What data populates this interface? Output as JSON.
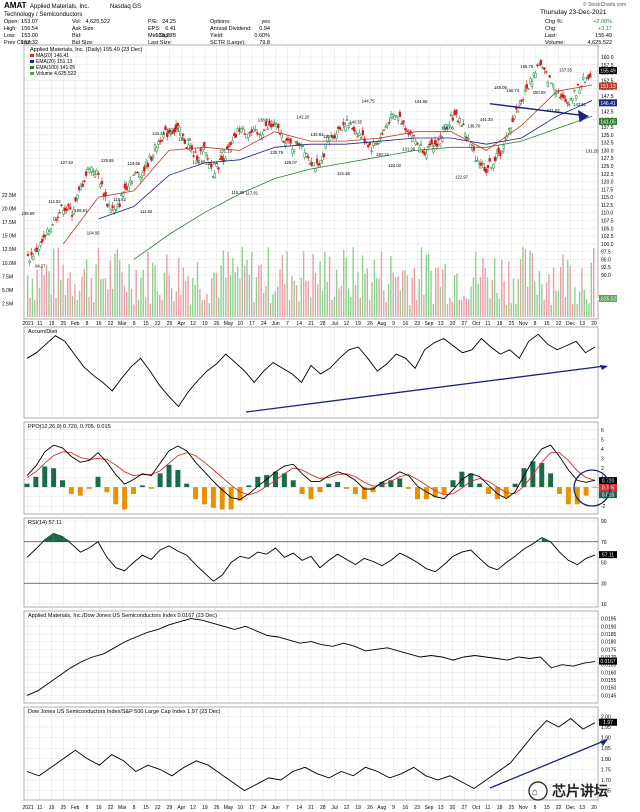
{
  "header": {
    "symbol": "AMAT",
    "company": "Applied Materials, Inc.",
    "exchange": "Nasdaq GS",
    "sector": "Technology / Semiconductors",
    "date": "Thursday 23-Dec-2021",
    "copyright": "© StockCharts.com",
    "col1": [
      [
        "Open:",
        "153.07"
      ],
      [
        "High:",
        "156.54"
      ],
      [
        "Low:",
        "153.00"
      ],
      [
        "Prev Close:",
        "152.32"
      ]
    ],
    "col2": [
      [
        "Vol:",
        "4,625,522"
      ],
      [
        "Ask Size:",
        ""
      ],
      [
        "Bid:",
        ""
      ],
      [
        "Bid Size:",
        ""
      ]
    ],
    "col3": [
      [
        "P/E:",
        "24.25"
      ],
      [
        "EPS:",
        "6.41"
      ],
      [
        "Mkt Cap:",
        "138.28B"
      ],
      [
        "Last Size:",
        ""
      ]
    ],
    "col4": [
      [
        "Options:",
        "yes"
      ],
      [
        "Annual Dividend:",
        "0.94"
      ],
      [
        "Yield:",
        "0.60%"
      ],
      [
        "SCTR (Large):",
        "79.8"
      ]
    ],
    "col5": [
      [
        "Chg %:",
        "+2.08%"
      ],
      [
        "Chg:",
        "+3.17"
      ],
      [
        "Last:",
        "155.49"
      ],
      [
        "Volume:",
        "4,625,522"
      ]
    ]
  },
  "colors": {
    "price_up": "#1e8c3a",
    "price_down": "#cc2222",
    "ma20": "#c0392b",
    "ma50": "#1a237e",
    "ma200": "#2e7d32",
    "volume_up": "#8fcf8f",
    "volume_down": "#e8a0a8",
    "ppo_line": "#000000",
    "ppo_signal": "#d32f2f",
    "hist_pos": "#1b6b4b",
    "hist_neg": "#e59400",
    "rsi_fill": "#1b6b4b",
    "arrow": "#1a237e",
    "panel_border": "#999999",
    "grid": "#d9d9d9"
  },
  "chart_data": [
    {
      "type": "line",
      "panel": "price",
      "title": "Applied Materials, Inc. (Daily) 155.49 (23 Dec)",
      "legend": [
        "MA(20) 146.41",
        "EMA(20) 151.13",
        "EMA(100) 141.05",
        "Volume 4,625,522"
      ],
      "right_ticks": [
        "160.0",
        "157.5",
        "155.0",
        "152.5",
        "150.0",
        "147.5",
        "145.0",
        "142.5",
        "140.0",
        "137.5",
        "135.0",
        "132.5",
        "130.0",
        "127.5",
        "125.0",
        "122.5",
        "120.0",
        "117.5",
        "115.0",
        "112.5",
        "110.0",
        "107.5",
        "105.0",
        "102.5",
        "100.0",
        "97.5",
        "95.0",
        "92.5",
        "90.0"
      ],
      "volume_ticks": [
        "22.5M",
        "20.0M",
        "17.5M",
        "15.0M",
        "12.5M",
        "10.0M",
        "7.5M",
        "5.0M",
        "2.5M"
      ],
      "right_value_labels": [
        "155.49",
        "151.13",
        "146.41",
        "141.05"
      ],
      "volume_value_label": "4,625,522",
      "x_labels": [
        "2021",
        "11",
        "19",
        "25",
        "Feb",
        "8",
        "16",
        "22",
        "Mar",
        "8",
        "15",
        "22",
        "29",
        "Apr",
        "12",
        "19",
        "26",
        "May",
        "10",
        "17",
        "24",
        "Jun",
        "7",
        "14",
        "21",
        "28",
        "Jul",
        "12",
        "19",
        "26",
        "Aug",
        "9",
        "16",
        "23",
        "Sep",
        "13",
        "20",
        "27",
        "Oct",
        "11",
        "18",
        "25",
        "Nov",
        "8",
        "15",
        "22",
        "Dec",
        "13",
        "20"
      ],
      "annotations": [
        "108.69",
        "94.27",
        "112.52",
        "127.62",
        "109.51",
        "104.95",
        "125.65",
        "115.62",
        "124.66",
        "111.82",
        "134.28",
        "137.95",
        "132.46",
        "127.65",
        "124.84",
        "131.19",
        "115.30",
        "117.81",
        "138.61",
        "130.79",
        "125.07",
        "142.20",
        "133.93",
        "135.89",
        "121.48",
        "140.55",
        "144.75",
        "130.12",
        "124.02",
        "131.96",
        "144.65",
        "133.25",
        "136.06",
        "122.97",
        "136.70",
        "141.33",
        "149.09",
        "150.74",
        "155.76",
        "150.08",
        "141.63",
        "157.35",
        "143.61",
        "131.20"
      ],
      "ylim": [
        90.0,
        160.0
      ],
      "close_points": [
        [
          0,
          95
        ],
        [
          5,
          98
        ],
        [
          10,
          102
        ],
        [
          15,
          108
        ],
        [
          20,
          112
        ],
        [
          25,
          110
        ],
        [
          30,
          118
        ],
        [
          35,
          125
        ],
        [
          40,
          122
        ],
        [
          45,
          113
        ],
        [
          50,
          110
        ],
        [
          55,
          118
        ],
        [
          60,
          122
        ],
        [
          65,
          123
        ],
        [
          70,
          128
        ],
        [
          75,
          134
        ],
        [
          80,
          136
        ],
        [
          85,
          137
        ],
        [
          90,
          132
        ],
        [
          95,
          128
        ],
        [
          100,
          130
        ],
        [
          105,
          123
        ],
        [
          110,
          127
        ],
        [
          115,
          131
        ],
        [
          120,
          137
        ],
        [
          125,
          136
        ],
        [
          130,
          135
        ],
        [
          135,
          137
        ],
        [
          140,
          138
        ],
        [
          145,
          134
        ],
        [
          150,
          131
        ],
        [
          155,
          133
        ],
        [
          160,
          127
        ],
        [
          165,
          124
        ],
        [
          170,
          133
        ],
        [
          175,
          136
        ],
        [
          180,
          139
        ],
        [
          185,
          137
        ],
        [
          190,
          134
        ],
        [
          195,
          131
        ],
        [
          200,
          134
        ],
        [
          205,
          140
        ],
        [
          210,
          141
        ],
        [
          215,
          137
        ],
        [
          220,
          133
        ],
        [
          225,
          130
        ],
        [
          230,
          131
        ],
        [
          235,
          135
        ],
        [
          240,
          141
        ],
        [
          245,
          140
        ],
        [
          250,
          133
        ],
        [
          255,
          127
        ],
        [
          260,
          124
        ],
        [
          265,
          127
        ],
        [
          270,
          131
        ],
        [
          275,
          140
        ],
        [
          280,
          146
        ],
        [
          285,
          152
        ],
        [
          290,
          158
        ],
        [
          295,
          153
        ],
        [
          300,
          150
        ],
        [
          305,
          145
        ],
        [
          310,
          148
        ],
        [
          315,
          152
        ],
        [
          320,
          155.5
        ]
      ],
      "ma20_points": [
        [
          20,
          100
        ],
        [
          40,
          115
        ],
        [
          60,
          117
        ],
        [
          80,
          130
        ],
        [
          100,
          131
        ],
        [
          120,
          130
        ],
        [
          140,
          136
        ],
        [
          160,
          133
        ],
        [
          180,
          133
        ],
        [
          200,
          134
        ],
        [
          220,
          136
        ],
        [
          240,
          136
        ],
        [
          260,
          130
        ],
        [
          280,
          138
        ],
        [
          300,
          149
        ],
        [
          320,
          151
        ]
      ],
      "ma50_points": [
        [
          40,
          108
        ],
        [
          60,
          112
        ],
        [
          80,
          122
        ],
        [
          100,
          126
        ],
        [
          120,
          127
        ],
        [
          140,
          131
        ],
        [
          160,
          132
        ],
        [
          180,
          132
        ],
        [
          200,
          133
        ],
        [
          220,
          134
        ],
        [
          240,
          134
        ],
        [
          260,
          132
        ],
        [
          280,
          134
        ],
        [
          300,
          141
        ],
        [
          320,
          146
        ]
      ],
      "ma200_points": [
        [
          60,
          95
        ],
        [
          80,
          103
        ],
        [
          100,
          110
        ],
        [
          120,
          116
        ],
        [
          140,
          121
        ],
        [
          160,
          124
        ],
        [
          180,
          126
        ],
        [
          200,
          128
        ],
        [
          220,
          130
        ],
        [
          240,
          131
        ],
        [
          260,
          131
        ],
        [
          280,
          133
        ],
        [
          300,
          137
        ],
        [
          320,
          141
        ]
      ]
    },
    {
      "type": "line",
      "panel": "accum",
      "title": "Accum/Distr",
      "values": [
        80,
        84,
        90,
        96,
        92,
        83,
        74,
        68,
        63,
        57,
        66,
        74,
        80,
        71,
        61,
        53,
        46,
        56,
        64,
        71,
        76,
        83,
        77,
        71,
        63,
        71,
        77,
        73,
        69,
        63,
        75,
        69,
        73,
        80,
        86,
        88,
        80,
        71,
        76,
        83,
        80,
        73,
        86,
        91,
        94,
        89,
        84,
        86,
        94,
        88,
        83,
        86,
        80,
        92,
        97,
        90,
        86,
        89,
        92,
        84,
        88
      ]
    },
    {
      "type": "line",
      "panel": "ppo",
      "title": "PPO(12,26,9) 0.720, 0.705, 0.015",
      "right_ticks": [
        "6",
        "5",
        "4",
        "3",
        "2",
        "1",
        "0",
        "-1",
        "-2"
      ],
      "right_value_labels": [
        "0.720",
        "0.705",
        "0.015"
      ],
      "ylim": [
        -2.5,
        6.5
      ],
      "ppo": [
        1.2,
        2.2,
        3.7,
        4.4,
        4.1,
        3.2,
        2.6,
        2.8,
        3.6,
        2.6,
        1.3,
        0.3,
        0.8,
        1.4,
        1.2,
        2.5,
        3.8,
        4.3,
        3.8,
        2.6,
        1.6,
        0.6,
        -0.3,
        -1.1,
        -1.3,
        -0.7,
        0.1,
        0.8,
        1.6,
        2.2,
        2.4,
        1.4,
        0.6,
        0.6,
        1.2,
        1.6,
        1.3,
        0.7,
        -0.2,
        -0.2,
        0.5,
        1.0,
        1.6,
        1.2,
        0.1,
        -0.5,
        -1.0,
        -1.2,
        -0.3,
        0.8,
        1.4,
        1.1,
        0.2,
        -0.7,
        -1.2,
        -0.5,
        1.2,
        2.8,
        4.0,
        4.4,
        3.2,
        1.8,
        0.7,
        0.5,
        0.72
      ],
      "signal": [
        1.0,
        1.6,
        2.5,
        3.3,
        3.7,
        3.6,
        3.1,
        2.9,
        3.0,
        2.9,
        2.3,
        1.6,
        1.2,
        1.3,
        1.3,
        1.7,
        2.5,
        3.3,
        3.6,
        3.3,
        2.6,
        1.8,
        1.0,
        0.2,
        -0.5,
        -0.8,
        -0.5,
        0.1,
        0.7,
        1.4,
        2.0,
        1.8,
        1.3,
        0.9,
        1.0,
        1.3,
        1.4,
        1.1,
        0.5,
        0.1,
        0.2,
        0.6,
        1.1,
        1.3,
        0.8,
        0.2,
        -0.4,
        -0.8,
        -0.7,
        -0.1,
        0.6,
        0.9,
        0.6,
        0.0,
        -0.6,
        -0.7,
        0.1,
        1.3,
        2.6,
        3.6,
        3.6,
        2.8,
        1.7,
        1.0,
        0.705
      ]
    },
    {
      "type": "line",
      "panel": "rsi",
      "title": "RSI(14) 57.11",
      "right_ticks": [
        "90",
        "70",
        "50",
        "30",
        "10"
      ],
      "right_value_labels": [
        "57.11"
      ],
      "ylim": [
        10,
        90
      ],
      "values": [
        55,
        63,
        72,
        78,
        75,
        68,
        60,
        64,
        70,
        55,
        45,
        42,
        50,
        57,
        53,
        62,
        66,
        61,
        57,
        48,
        40,
        32,
        38,
        50,
        56,
        54,
        60,
        58,
        64,
        55,
        59,
        52,
        56,
        45,
        52,
        58,
        53,
        48,
        54,
        51,
        47,
        52,
        59,
        55,
        50,
        44,
        41,
        48,
        56,
        60,
        62,
        54,
        46,
        43,
        50,
        56,
        63,
        68,
        74,
        70,
        60,
        52,
        48,
        54,
        57.11
      ]
    },
    {
      "type": "line",
      "panel": "ratio1",
      "title": "Applied Materials, Inc./Dow Jones US Semiconductors Index 0.0167 (23 Dec)",
      "right_ticks": [
        "0.0195",
        "0.0190",
        "0.0185",
        "0.0180",
        "0.0175",
        "0.0170",
        "0.0165",
        "0.0160",
        "0.0155",
        "0.0150",
        "0.0145"
      ],
      "right_value_labels": [
        "0.0167"
      ],
      "ylim": [
        0.0142,
        0.0198
      ],
      "values": [
        0.0145,
        0.0148,
        0.0153,
        0.0158,
        0.0163,
        0.0167,
        0.017,
        0.0172,
        0.0176,
        0.018,
        0.0183,
        0.0186,
        0.0188,
        0.0191,
        0.0193,
        0.0195,
        0.0194,
        0.0192,
        0.019,
        0.0188,
        0.019,
        0.0187,
        0.0184,
        0.0183,
        0.0181,
        0.0179,
        0.018,
        0.0178,
        0.0177,
        0.0179,
        0.0177,
        0.0174,
        0.0175,
        0.0176,
        0.0174,
        0.0172,
        0.017,
        0.0171,
        0.017,
        0.0168,
        0.017,
        0.0171,
        0.017,
        0.0169,
        0.0168,
        0.017,
        0.0169,
        0.017,
        0.0163,
        0.0165,
        0.0164,
        0.0166,
        0.0167
      ]
    },
    {
      "type": "line",
      "panel": "ratio2",
      "title": "Dow Jones US Semiconductors Index/S&P 500 Large Cap Index 1.97 (23 Dec)",
      "right_ticks": [
        "2.00",
        "1.95",
        "1.90",
        "1.85",
        "1.80",
        "1.75",
        "1.70",
        "1.65"
      ],
      "right_value_labels": [
        "1.97"
      ],
      "ylim": [
        1.62,
        2.03
      ],
      "values": [
        1.74,
        1.72,
        1.76,
        1.8,
        1.84,
        1.8,
        1.77,
        1.82,
        1.79,
        1.74,
        1.77,
        1.75,
        1.72,
        1.76,
        1.79,
        1.77,
        1.73,
        1.69,
        1.65,
        1.68,
        1.71,
        1.7,
        1.74,
        1.76,
        1.73,
        1.71,
        1.74,
        1.72,
        1.76,
        1.74,
        1.71,
        1.73,
        1.76,
        1.72,
        1.7,
        1.72,
        1.69,
        1.66,
        1.7,
        1.74,
        1.78,
        1.85,
        1.92,
        1.98,
        1.95,
        1.99,
        1.94,
        1.97
      ]
    }
  ],
  "watermark": "芯片讲坛"
}
